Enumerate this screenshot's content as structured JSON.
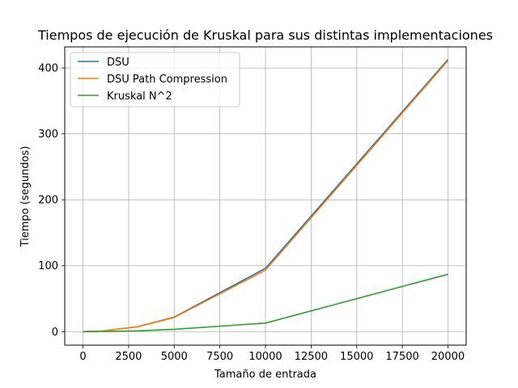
{
  "chart_data": {
    "type": "line",
    "title": "Tiempos de ejecución de Kruskal para sus distintas implementaciones",
    "xlabel": "Tamaño de entrada",
    "ylabel": "Tiempo (segundos)",
    "xlim": [
      -1000,
      21000
    ],
    "ylim": [
      -20.5,
      432
    ],
    "xticks": [
      0,
      2500,
      5000,
      7500,
      10000,
      12500,
      15000,
      17500,
      20000
    ],
    "yticks": [
      0,
      100,
      200,
      300,
      400
    ],
    "grid": true,
    "legend_position": "upper-left",
    "series": [
      {
        "name": "DSU",
        "color": "#1f77b4",
        "x": [
          0,
          1000,
          3000,
          5000,
          10000,
          20000
        ],
        "y": [
          0,
          0.8,
          7.5,
          22,
          96,
          413
        ]
      },
      {
        "name": "DSU Path Compression",
        "color": "#ff7f0e",
        "x": [
          0,
          1000,
          3000,
          5000,
          10000,
          20000
        ],
        "y": [
          0,
          0.8,
          7.3,
          21.5,
          93,
          411
        ]
      },
      {
        "name": "Kruskal N^2",
        "color": "#2ca02c",
        "x": [
          0,
          1000,
          3000,
          5000,
          10000,
          20000
        ],
        "y": [
          0,
          0.2,
          1.2,
          3.5,
          13,
          87
        ]
      }
    ]
  }
}
